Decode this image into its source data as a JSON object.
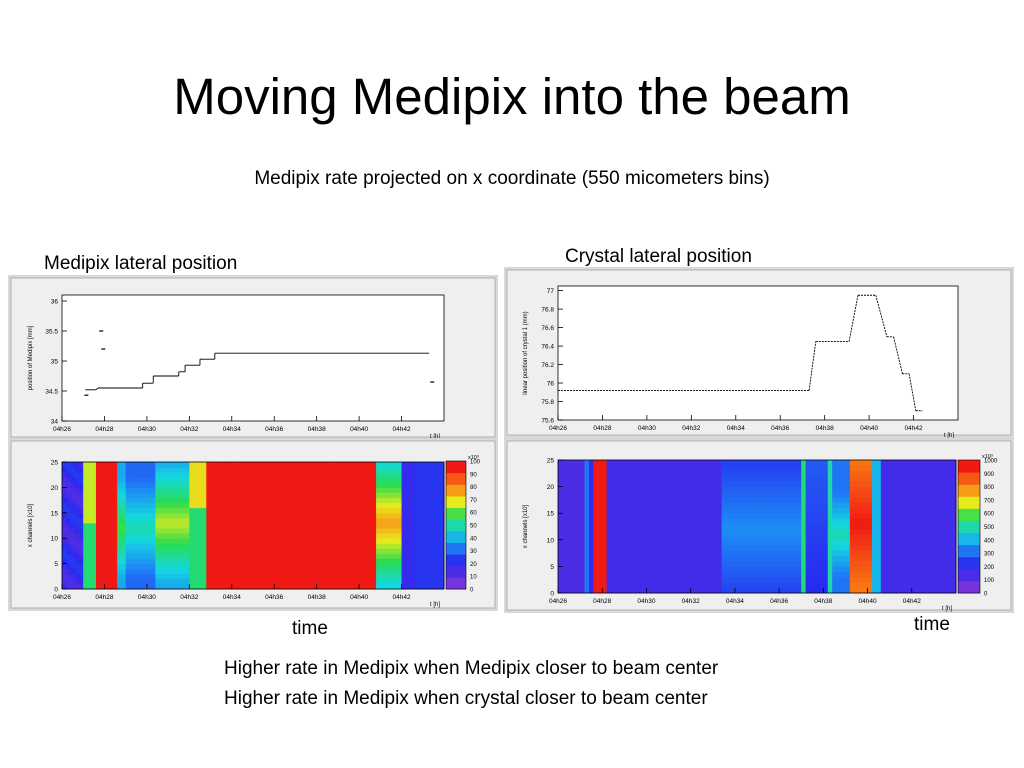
{
  "slide": {
    "title": "Moving Medipix into the beam",
    "subtitle": "Medipix rate projected on x coordinate (550 micometers bins)",
    "left_caption": "Medipix lateral position",
    "right_caption": "Crystal lateral position",
    "left_time_label": "time",
    "right_time_label": "time",
    "conclusions": [
      "Higher rate in Medipix when Medipix closer to beam center",
      "Higher rate in Medipix when crystal closer to beam center"
    ]
  },
  "chart_data": [
    {
      "type": "line",
      "ylabel": "position of Medipix [mm]",
      "xlabel": "t [h]",
      "x_ticks": [
        "04h26",
        "04h28",
        "04h30",
        "04h32",
        "04h34",
        "04h36",
        "04h38",
        "04h40",
        "04h42"
      ],
      "y_ticks": [
        "34",
        "34.5",
        "35",
        "35.5",
        "36"
      ],
      "xlim": [
        26,
        44
      ],
      "ylim": [
        34,
        36.1
      ],
      "points": [
        [
          27.1,
          34.52
        ],
        [
          27.6,
          34.52
        ],
        [
          27.7,
          34.55
        ],
        [
          29.8,
          34.55
        ],
        [
          29.8,
          34.63
        ],
        [
          30.3,
          34.63
        ],
        [
          30.3,
          34.75
        ],
        [
          31.5,
          34.75
        ],
        [
          31.5,
          34.82
        ],
        [
          31.8,
          34.82
        ],
        [
          31.8,
          34.93
        ],
        [
          32.5,
          34.93
        ],
        [
          32.5,
          35.03
        ],
        [
          33.2,
          35.03
        ],
        [
          33.2,
          35.13
        ],
        [
          43.3,
          35.13
        ]
      ],
      "outliers": [
        [
          27.8,
          35.5
        ],
        [
          27.9,
          35.2
        ],
        [
          27.1,
          34.43
        ],
        [
          43.4,
          34.65
        ]
      ]
    },
    {
      "type": "heatmap",
      "ylabel": "x channels [x10]",
      "xlabel": "t [h]",
      "x_ticks": [
        "04h26",
        "04h28",
        "04h30",
        "04h32",
        "04h34",
        "04h36",
        "04h38",
        "04h40",
        "04h42"
      ],
      "y_ticks": [
        "0",
        "5",
        "10",
        "15",
        "20",
        "25"
      ],
      "xlim": [
        26,
        44
      ],
      "ylim": [
        0,
        25
      ],
      "colorbar_ticks": [
        "0",
        "10",
        "20",
        "30",
        "40",
        "50",
        "60",
        "70",
        "80",
        "90",
        "100"
      ],
      "colorbar_exponent": "x10³"
    },
    {
      "type": "line",
      "ylabel": "linear position of crystal 1 (mm)",
      "xlabel": "t [h]",
      "x_ticks": [
        "04h26",
        "04h28",
        "04h30",
        "04h32",
        "04h34",
        "04h36",
        "04h38",
        "04h40",
        "04h42"
      ],
      "y_ticks": [
        "75.6",
        "75.8",
        "76",
        "76.2",
        "76.4",
        "76.6",
        "76.8",
        "77"
      ],
      "xlim": [
        26,
        44
      ],
      "ylim": [
        75.6,
        77.05
      ],
      "points": [
        [
          26,
          75.92
        ],
        [
          37.3,
          75.92
        ],
        [
          37.6,
          76.45
        ],
        [
          39.1,
          76.45
        ],
        [
          39.5,
          76.95
        ],
        [
          40.3,
          76.95
        ],
        [
          40.8,
          76.5
        ],
        [
          41.1,
          76.5
        ],
        [
          41.5,
          76.1
        ],
        [
          41.8,
          76.1
        ],
        [
          42.1,
          75.7
        ],
        [
          42.4,
          75.7
        ]
      ]
    },
    {
      "type": "heatmap",
      "ylabel": "x channels [x10]",
      "xlabel": "t [h]",
      "x_ticks": [
        "04h26",
        "04h28",
        "04h30",
        "04h32",
        "04h34",
        "04h36",
        "04h38",
        "04h40",
        "04h42"
      ],
      "y_ticks": [
        "0",
        "5",
        "10",
        "15",
        "20",
        "25"
      ],
      "xlim": [
        26,
        44
      ],
      "ylim": [
        0,
        25
      ],
      "colorbar_ticks": [
        "0",
        "100",
        "200",
        "300",
        "400",
        "500",
        "600",
        "700",
        "800",
        "900",
        "1000"
      ],
      "colorbar_exponent": "x10³"
    }
  ]
}
